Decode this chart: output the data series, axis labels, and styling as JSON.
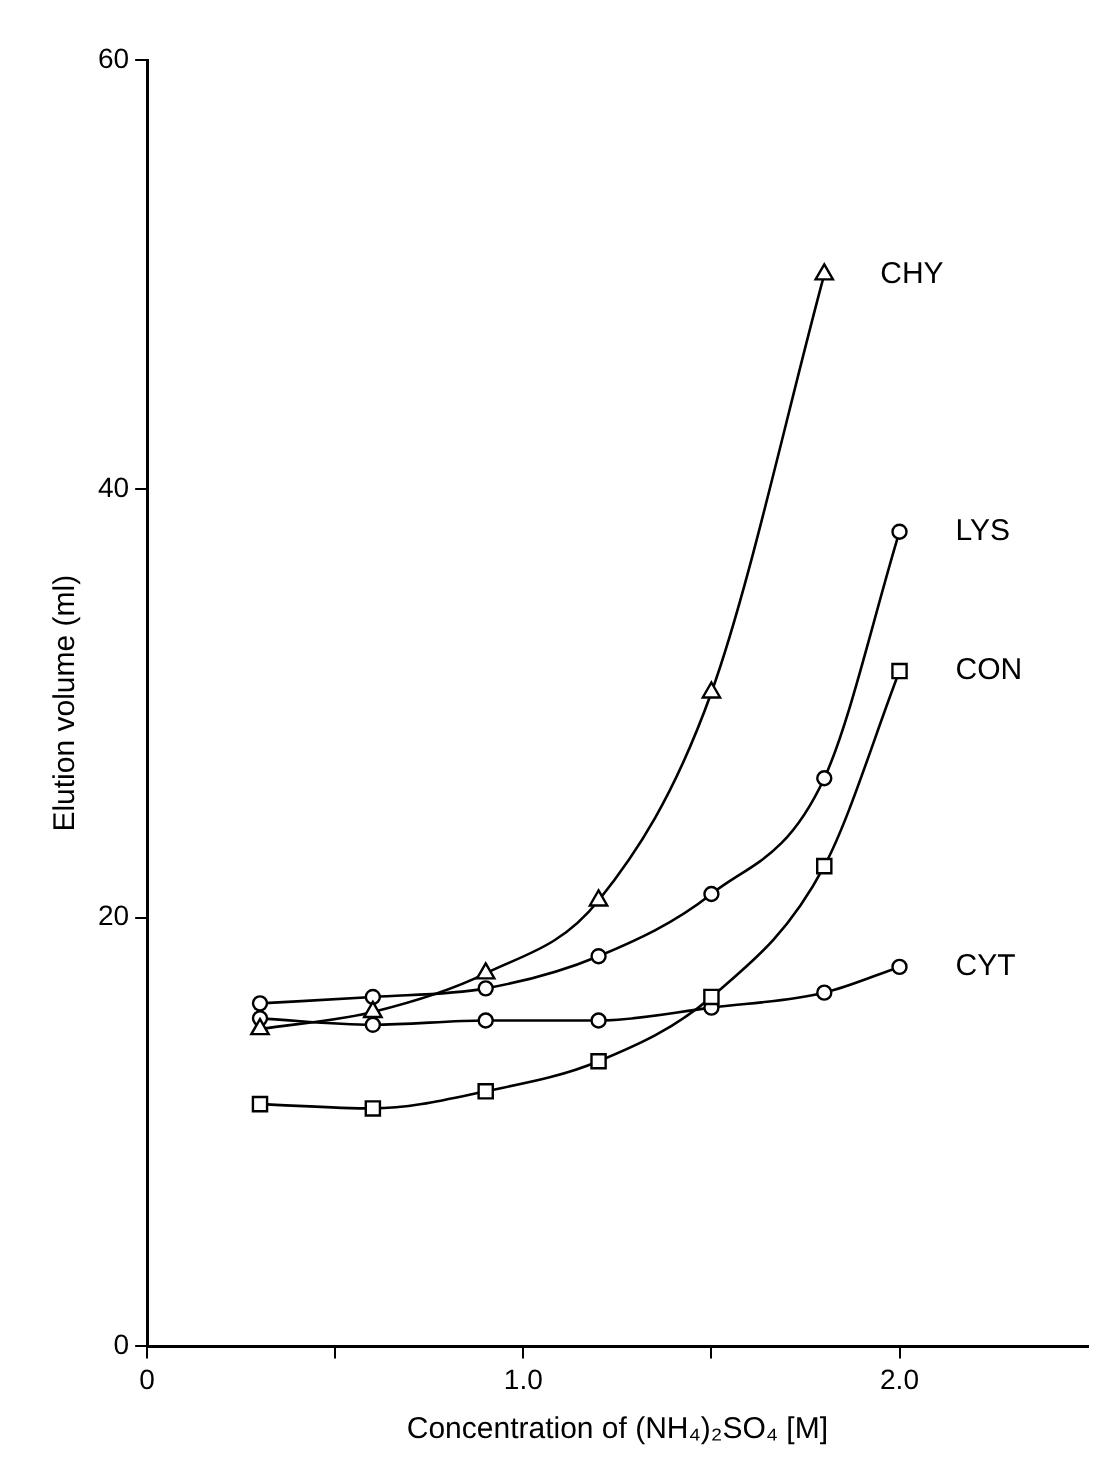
{
  "chart_data": {
    "type": "line",
    "xlabel": "Concentration of (NH₄)₂SO₄ [M]",
    "ylabel": "Elution volume (ml)",
    "xlim": [
      0,
      2.5
    ],
    "xticks": [
      0,
      {
        "value": 0.5,
        "label": null
      },
      {
        "value": 1,
        "label": "1.0"
      },
      {
        "value": 1.5,
        "label": null
      },
      {
        "value": 2,
        "label": "2.0"
      }
    ],
    "ylim": [
      0,
      60
    ],
    "yticks": [
      0,
      20,
      40,
      60
    ],
    "grid": false,
    "legend": false,
    "line_style": "solid",
    "series": [
      {
        "name": "CHY",
        "color": "#000000",
        "marker": "triangle",
        "x": [
          0.3,
          0.6,
          0.9,
          1.2,
          1.5,
          1.8
        ],
        "values": [
          14.8,
          15.6,
          17.4,
          20.8,
          30.5,
          50
        ]
      },
      {
        "name": "LYS",
        "color": "#000000",
        "marker": "circle",
        "x": [
          0.3,
          0.6,
          0.9,
          1.2,
          1.5,
          1.8,
          2.0
        ],
        "values": [
          16.0,
          16.3,
          16.7,
          18.2,
          21.1,
          26.5,
          38
        ]
      },
      {
        "name": "CON",
        "color": "#000000",
        "marker": "square",
        "x": [
          0.3,
          0.6,
          0.9,
          1.2,
          1.5,
          1.8,
          2.0
        ],
        "values": [
          11.3,
          11.1,
          11.9,
          13.3,
          16.3,
          22.4,
          31.5
        ]
      },
      {
        "name": "CYT",
        "color": "#000000",
        "marker": "circle",
        "x": [
          0.3,
          0.6,
          0.9,
          1.2,
          1.5,
          1.8,
          2.0
        ],
        "values": [
          15.3,
          15.0,
          15.2,
          15.2,
          15.8,
          16.5,
          17.7
        ]
      }
    ]
  }
}
